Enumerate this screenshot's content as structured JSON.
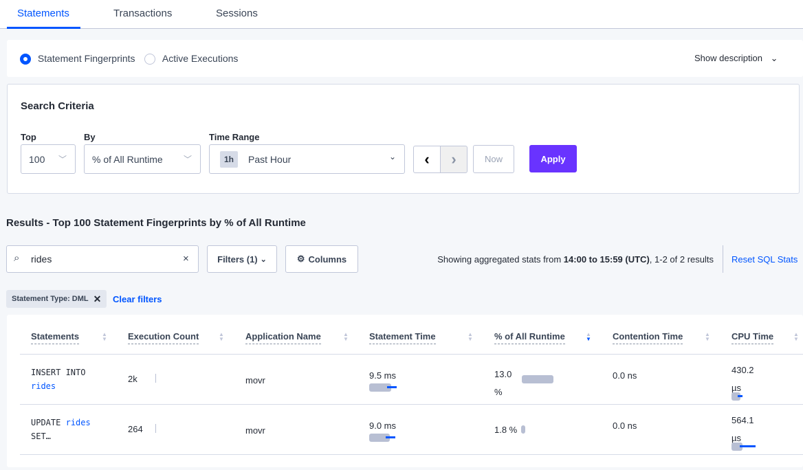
{
  "tabs": [
    {
      "label": "Statements",
      "active": true
    },
    {
      "label": "Transactions"
    },
    {
      "label": "Sessions"
    }
  ],
  "view_toggle": {
    "options": [
      {
        "label": "Statement Fingerprints",
        "selected": true
      },
      {
        "label": "Active Executions",
        "selected": false
      }
    ],
    "show_description": "Show description"
  },
  "search_criteria": {
    "title": "Search Criteria",
    "top_label": "Top",
    "top_value": "100",
    "by_label": "By",
    "by_value": "% of All Runtime",
    "time_label": "Time Range",
    "time_badge": "1h",
    "time_value": "Past Hour",
    "now_label": "Now",
    "apply_label": "Apply"
  },
  "results": {
    "title": "Results - Top 100 Statement Fingerprints by % of All Runtime",
    "search_value": "rides",
    "filters_label": "Filters (1)",
    "columns_label": "Columns",
    "stats_prefix": "Showing aggregated stats from ",
    "stats_range": "14:00 to 15:59 (UTC)",
    "stats_suffix": ", 1-2 of 2 results",
    "reset_label": "Reset SQL Stats",
    "chip_label": "Statement Type: DML",
    "clear_filters": "Clear filters"
  },
  "table": {
    "headers": [
      "Statements",
      "Execution Count",
      "Application Name",
      "Statement Time",
      "% of All Runtime",
      "Contention Time",
      "CPU Time"
    ],
    "sorted_column": "% of All Runtime",
    "sort_direction": "descending",
    "rows": [
      {
        "stmt_a": "INSERT INTO",
        "stmt_kw": "rides",
        "stmt_b": "",
        "exec": "2k",
        "app": "movr",
        "stmt_time": "9.5 ms",
        "runtime_a": "13.0",
        "runtime_b": "%",
        "runtime_pct": 13.0,
        "contention": "0.0 ns",
        "cpu_a": "430.2",
        "cpu_b": "µs"
      },
      {
        "stmt_a": "UPDATE",
        "stmt_kw": "rides",
        "stmt_b": "SET…",
        "exec": "264",
        "app": "movr",
        "stmt_time": "9.0 ms",
        "runtime_a": "1.8 %",
        "runtime_b": "",
        "runtime_pct": 1.8,
        "contention": "0.0 ns",
        "cpu_a": "564.1",
        "cpu_b": "µs"
      }
    ]
  },
  "colors": {
    "accent": "#0055ff",
    "apply": "#6933ff",
    "bar": "#b8bfd3"
  }
}
